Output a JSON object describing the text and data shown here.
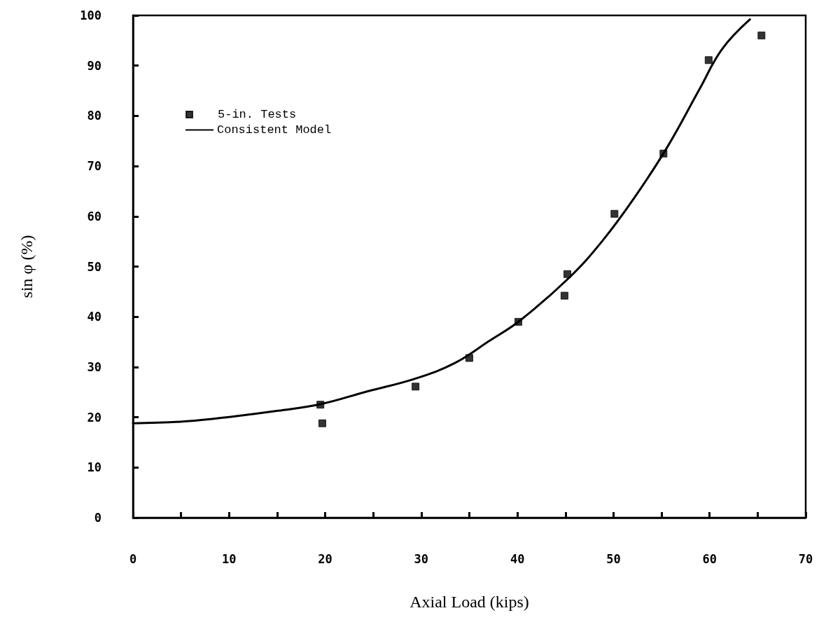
{
  "chart_data": {
    "type": "scatter",
    "xlabel": "Axial Load (kips)",
    "ylabel": "sin φ (%)",
    "xlim": [
      0,
      70
    ],
    "ylim": [
      0,
      100
    ],
    "xticks": [
      0,
      {
        "value": 5,
        "label": null
      },
      10,
      {
        "value": 15,
        "label": null
      },
      20,
      {
        "value": 25,
        "label": null
      },
      30,
      {
        "value": 35,
        "label": null
      },
      40,
      {
        "value": 45,
        "label": null
      },
      50,
      {
        "value": 55,
        "label": null
      },
      60,
      {
        "value": 65,
        "label": null
      },
      70
    ],
    "yticks": [
      0,
      10,
      20,
      30,
      40,
      50,
      60,
      70,
      80,
      90,
      100
    ],
    "grid": false,
    "legend": "top left",
    "series": [
      {
        "name": "5-in. Tests",
        "marker": "square",
        "color": "#000000",
        "x": [
          19.5,
          19.7,
          29.4,
          35.0,
          40.1,
          44.9,
          45.2,
          50.1,
          55.2,
          59.9,
          65.4
        ],
        "values": [
          22.5,
          18.8,
          26.1,
          31.8,
          39.0,
          44.2,
          48.5,
          60.5,
          72.5,
          91.1,
          96.0
        ]
      },
      {
        "name": "Consistent Model",
        "type": "line",
        "marker": "none",
        "line_style": "solid",
        "color": "#000000",
        "x": [
          0,
          5.6,
          10.6,
          15.1,
          19.5,
          24.3,
          29.4,
          33.5,
          37.0,
          40.3,
          45.4,
          48.8,
          52.1,
          55.6,
          59.0,
          61.3,
          64.2
        ],
        "values": [
          18.8,
          19.2,
          20.2,
          21.3,
          22.6,
          25.1,
          27.7,
          30.8,
          35.1,
          39.3,
          47.8,
          55.0,
          63.5,
          73.8,
          85.5,
          93.3,
          99.2
        ]
      }
    ]
  }
}
